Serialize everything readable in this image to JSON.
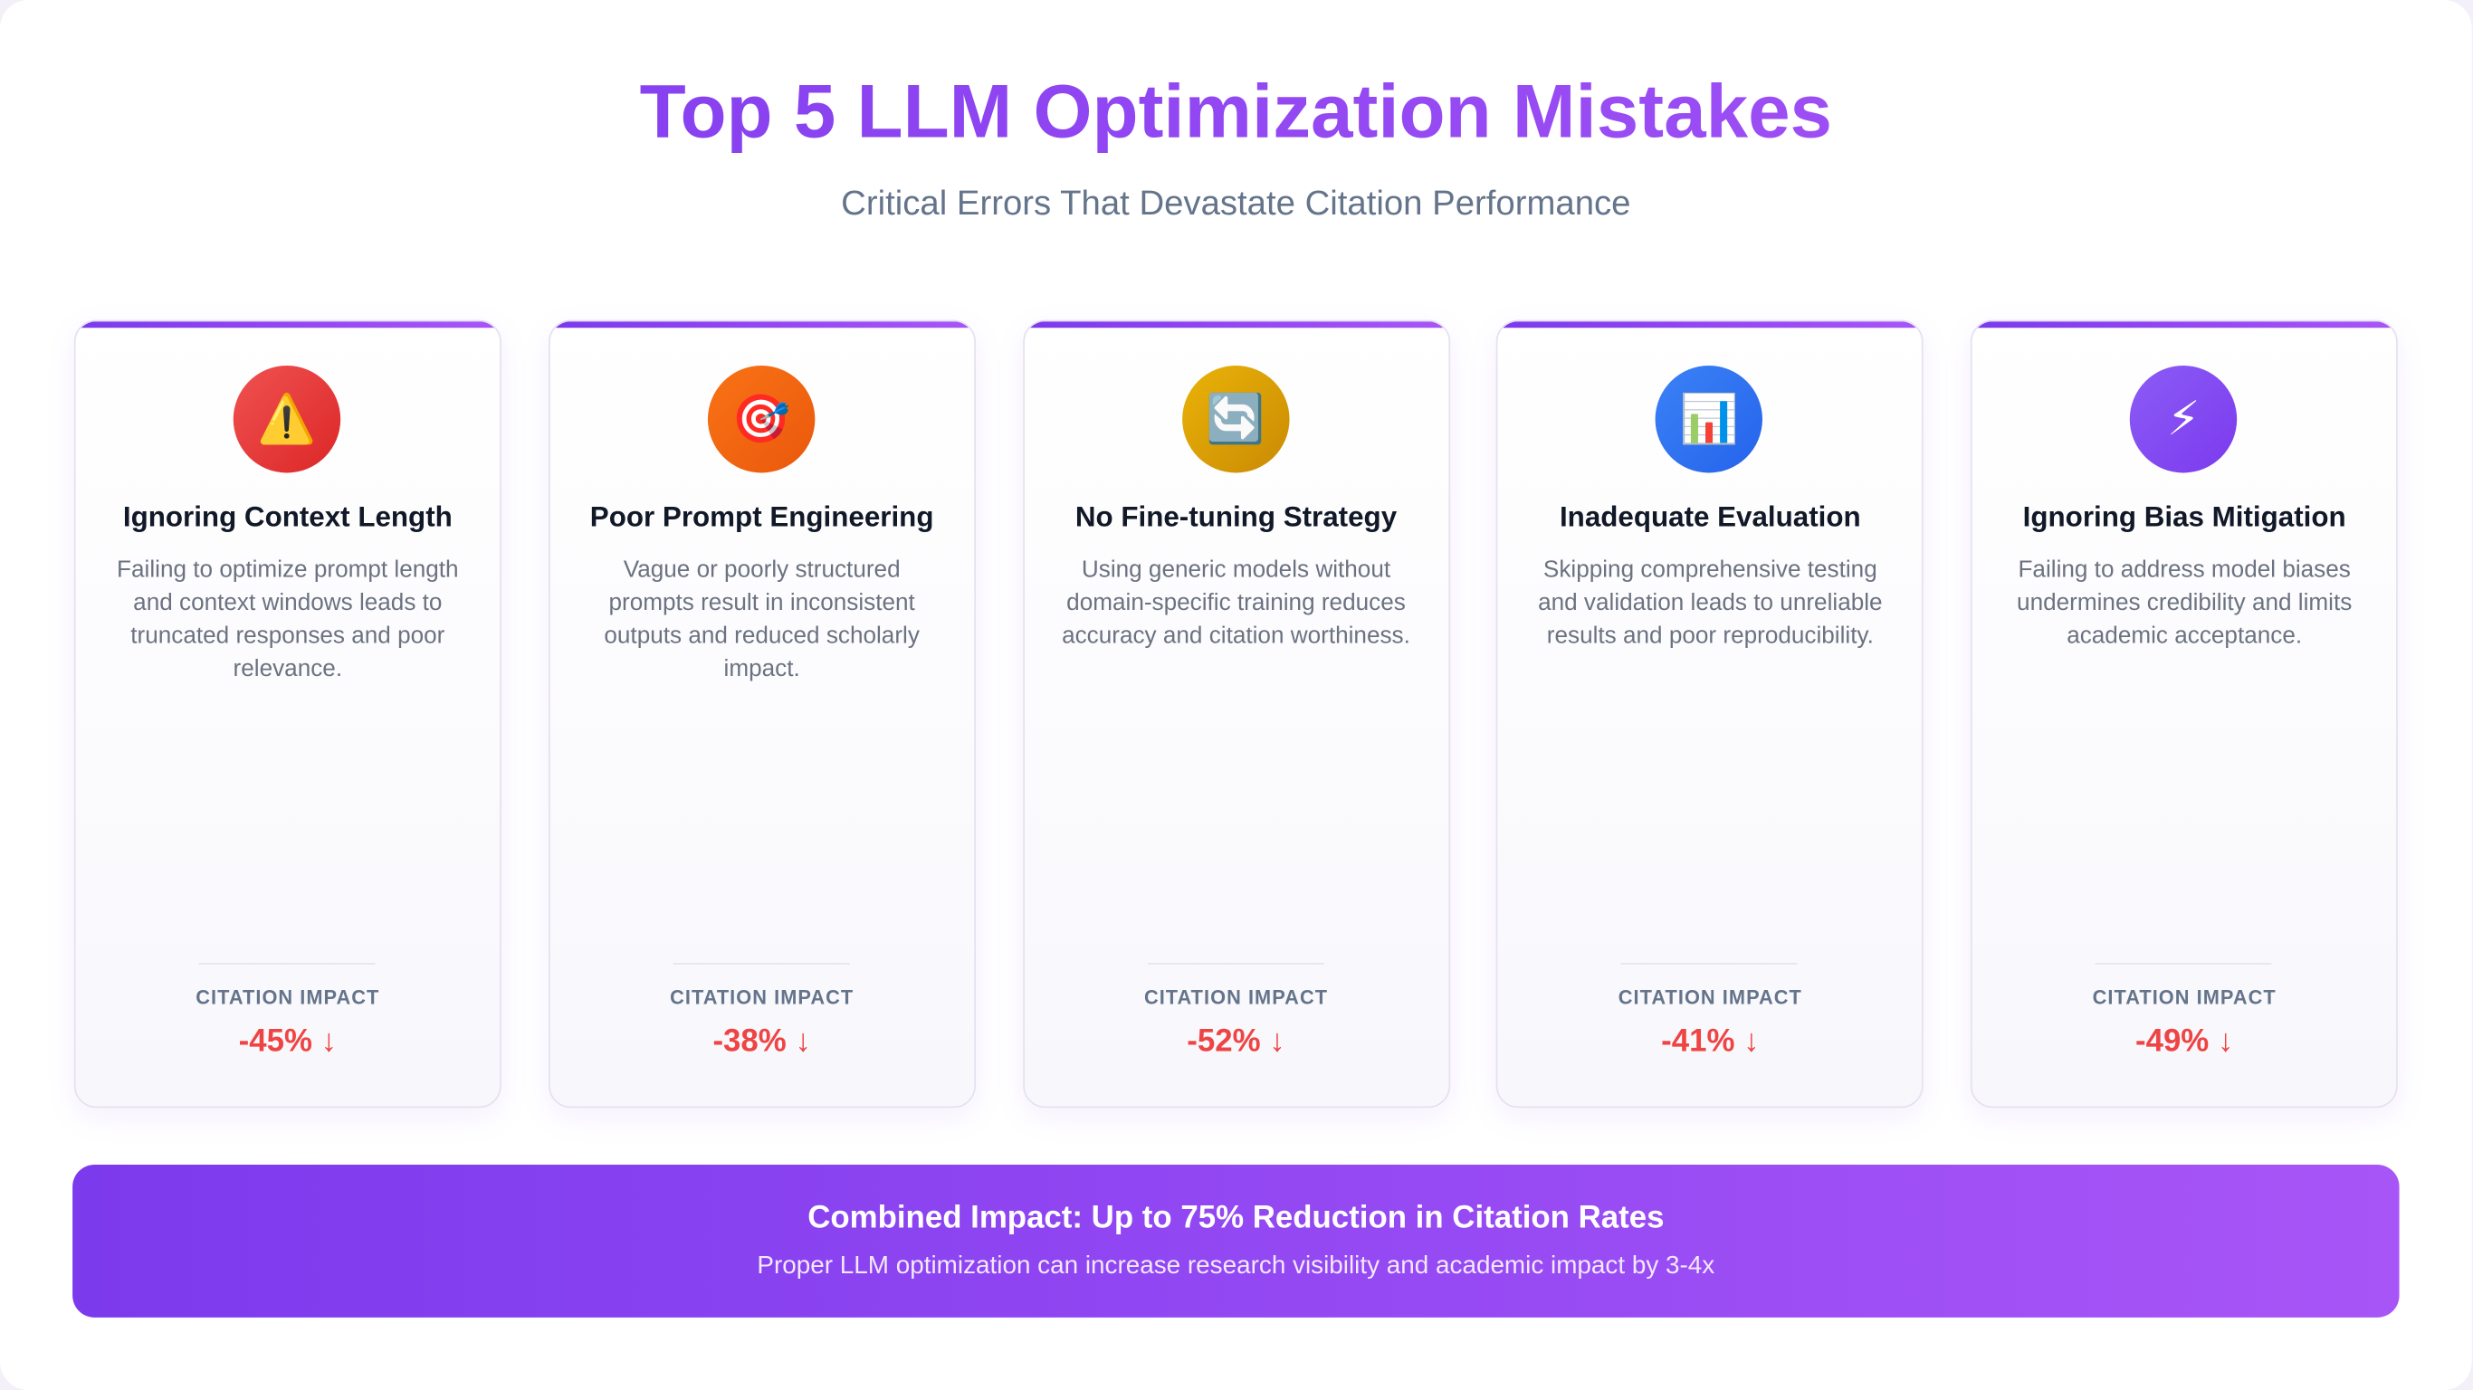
{
  "header": {
    "title": "Top 5 LLM Optimization Mistakes",
    "subtitle": "Critical Errors That Devastate Citation Performance"
  },
  "impact_label": "CITATION IMPACT",
  "cards": [
    {
      "icon": "⚠️",
      "title": "Ignoring Context Length",
      "text": "Failing to optimize prompt length and context windows leads to truncated responses and poor relevance.",
      "impact": "-45% ↓"
    },
    {
      "icon": "🎯",
      "title": "Poor Prompt Engineering",
      "text": "Vague or poorly structured prompts result in inconsistent outputs and reduced scholarly impact.",
      "impact": "-38% ↓"
    },
    {
      "icon": "🔄",
      "title": "No Fine-tuning Strategy",
      "text": "Using generic models without domain-specific training reduces accuracy and citation worthiness.",
      "impact": "-52% ↓"
    },
    {
      "icon": "📊",
      "title": "Inadequate Evaluation",
      "text": "Skipping comprehensive testing and validation leads to unreliable results and poor reproducibility.",
      "impact": "-41% ↓"
    },
    {
      "icon": "⚡",
      "title": "Ignoring Bias Mitigation",
      "text": "Failing to address model biases undermines credibility and limits academic acceptance.",
      "impact": "-49% ↓"
    }
  ],
  "banner": {
    "title": "Combined Impact: Up to 75% Reduction in Citation Rates",
    "text": "Proper LLM optimization can increase research visibility and academic impact by 3-4x"
  }
}
